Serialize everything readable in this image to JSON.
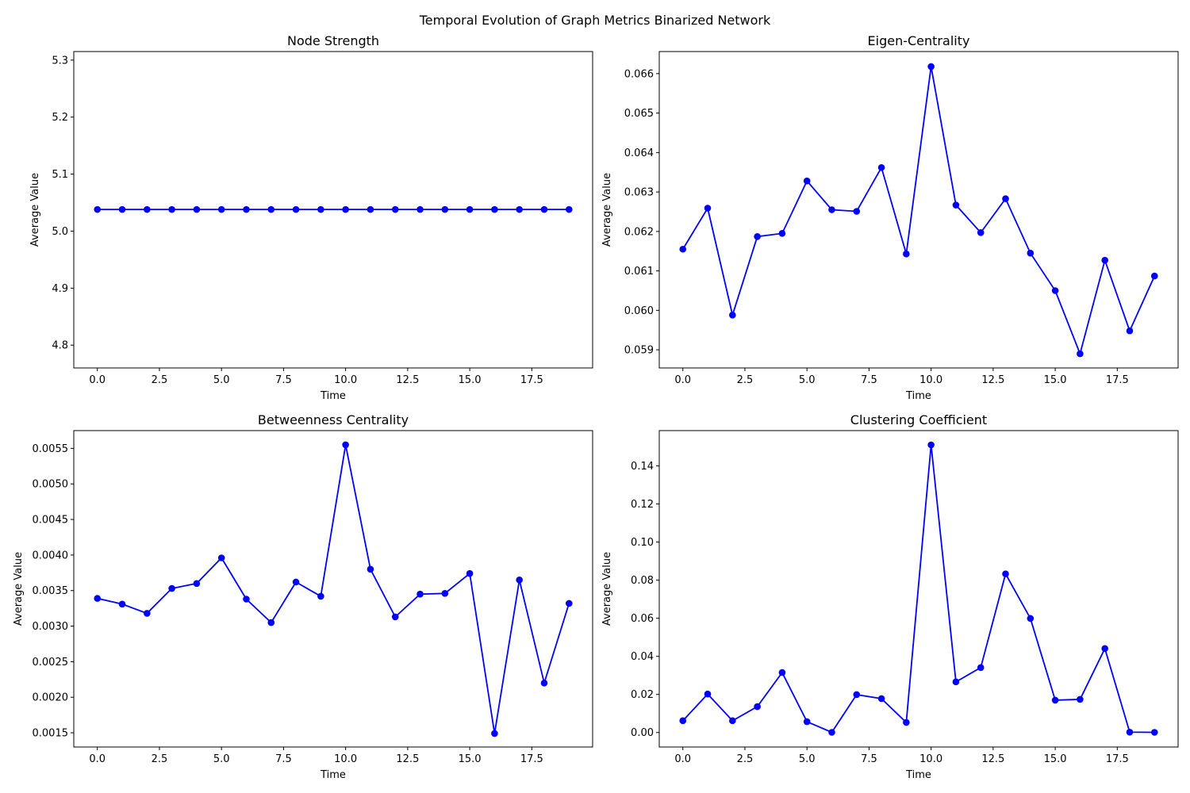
{
  "figure": {
    "title": "Temporal Evolution of Graph Metrics Binarized Network"
  },
  "chart_data": [
    {
      "type": "line",
      "title": "Node Strength",
      "xlabel": "Time",
      "ylabel": "Average Value",
      "xlim": [
        -0.95,
        19.95
      ],
      "ylim": [
        4.76,
        5.315
      ],
      "xticks": [
        0,
        2.5,
        5,
        7.5,
        10,
        12.5,
        15,
        17.5
      ],
      "xtick_labels": [
        "0.0",
        "2.5",
        "5.0",
        "7.5",
        "10.0",
        "12.5",
        "15.0",
        "17.5"
      ],
      "yticks": [
        4.8,
        4.9,
        5.0,
        5.1,
        5.2,
        5.3
      ],
      "ytick_labels": [
        "4.8",
        "4.9",
        "5.0",
        "5.1",
        "5.2",
        "5.3"
      ],
      "series": [
        {
          "color": "#0000ff",
          "marker": "circle",
          "x": [
            0,
            1,
            2,
            3,
            4,
            5,
            6,
            7,
            8,
            9,
            10,
            11,
            12,
            13,
            14,
            15,
            16,
            17,
            18,
            19
          ],
          "y": [
            5.038,
            5.038,
            5.038,
            5.038,
            5.038,
            5.038,
            5.038,
            5.038,
            5.038,
            5.038,
            5.038,
            5.038,
            5.038,
            5.038,
            5.038,
            5.038,
            5.038,
            5.038,
            5.038,
            5.038
          ]
        }
      ],
      "grid": false
    },
    {
      "type": "line",
      "title": "Eigen-Centrality",
      "xlabel": "Time",
      "ylabel": "Average Value",
      "xlim": [
        -0.95,
        19.95
      ],
      "ylim": [
        0.05854,
        0.06656
      ],
      "xticks": [
        0,
        2.5,
        5,
        7.5,
        10,
        12.5,
        15,
        17.5
      ],
      "xtick_labels": [
        "0.0",
        "2.5",
        "5.0",
        "7.5",
        "10.0",
        "12.5",
        "15.0",
        "17.5"
      ],
      "yticks": [
        0.059,
        0.06,
        0.061,
        0.062,
        0.063,
        0.064,
        0.065,
        0.066
      ],
      "ytick_labels": [
        "0.059",
        "0.060",
        "0.061",
        "0.062",
        "0.063",
        "0.064",
        "0.065",
        "0.066"
      ],
      "series": [
        {
          "color": "#0000ff",
          "marker": "circle",
          "x": [
            0,
            1,
            2,
            3,
            4,
            5,
            6,
            7,
            8,
            9,
            10,
            11,
            12,
            13,
            14,
            15,
            16,
            17,
            18,
            19
          ],
          "y": [
            0.06155,
            0.06259,
            0.05988,
            0.06187,
            0.06195,
            0.06328,
            0.06255,
            0.06251,
            0.06362,
            0.06143,
            0.06618,
            0.06267,
            0.06197,
            0.06283,
            0.06145,
            0.0605,
            0.0589,
            0.06127,
            0.05948,
            0.06087
          ]
        }
      ],
      "grid": false
    },
    {
      "type": "line",
      "title": "Betweenness Centrality",
      "xlabel": "Time",
      "ylabel": "Average Value",
      "xlim": [
        -0.95,
        19.95
      ],
      "ylim": [
        0.0013,
        0.00575
      ],
      "xticks": [
        0,
        2.5,
        5,
        7.5,
        10,
        12.5,
        15,
        17.5
      ],
      "xtick_labels": [
        "0.0",
        "2.5",
        "5.0",
        "7.5",
        "10.0",
        "12.5",
        "15.0",
        "17.5"
      ],
      "yticks": [
        0.0015,
        0.002,
        0.0025,
        0.003,
        0.0035,
        0.004,
        0.0045,
        0.005,
        0.0055
      ],
      "ytick_labels": [
        "0.0015",
        "0.0020",
        "0.0025",
        "0.0030",
        "0.0035",
        "0.0040",
        "0.0045",
        "0.0050",
        "0.0055"
      ],
      "series": [
        {
          "color": "#0000ff",
          "marker": "circle",
          "x": [
            0,
            1,
            2,
            3,
            4,
            5,
            6,
            7,
            8,
            9,
            10,
            11,
            12,
            13,
            14,
            15,
            16,
            17,
            18,
            19
          ],
          "y": [
            0.00339,
            0.00331,
            0.00318,
            0.00353,
            0.0036,
            0.00396,
            0.00338,
            0.00305,
            0.00362,
            0.00342,
            0.00555,
            0.0038,
            0.00313,
            0.00345,
            0.00346,
            0.00374,
            0.00149,
            0.00365,
            0.0022,
            0.00332
          ]
        }
      ],
      "grid": false
    },
    {
      "type": "line",
      "title": "Clustering Coefficient",
      "xlabel": "Time",
      "ylabel": "Average Value",
      "xlim": [
        -0.95,
        19.95
      ],
      "ylim": [
        -0.0076,
        0.1585
      ],
      "xticks": [
        0,
        2.5,
        5,
        7.5,
        10,
        12.5,
        15,
        17.5
      ],
      "xtick_labels": [
        "0.0",
        "2.5",
        "5.0",
        "7.5",
        "10.0",
        "12.5",
        "15.0",
        "17.5"
      ],
      "yticks": [
        0.0,
        0.02,
        0.04,
        0.06,
        0.08,
        0.1,
        0.12,
        0.14
      ],
      "ytick_labels": [
        "0.00",
        "0.02",
        "0.04",
        "0.06",
        "0.08",
        "0.10",
        "0.12",
        "0.14"
      ],
      "series": [
        {
          "color": "#0000ff",
          "marker": "circle",
          "x": [
            0,
            1,
            2,
            3,
            4,
            5,
            6,
            7,
            8,
            9,
            10,
            11,
            12,
            13,
            14,
            15,
            16,
            17,
            18,
            19
          ],
          "y": [
            0.0062,
            0.0202,
            0.0062,
            0.0136,
            0.0315,
            0.0057,
            0.0001,
            0.0199,
            0.0178,
            0.0053,
            0.151,
            0.0266,
            0.0341,
            0.0833,
            0.0599,
            0.017,
            0.0174,
            0.0441,
            0.0002,
            0.0001
          ]
        }
      ],
      "grid": false
    }
  ]
}
